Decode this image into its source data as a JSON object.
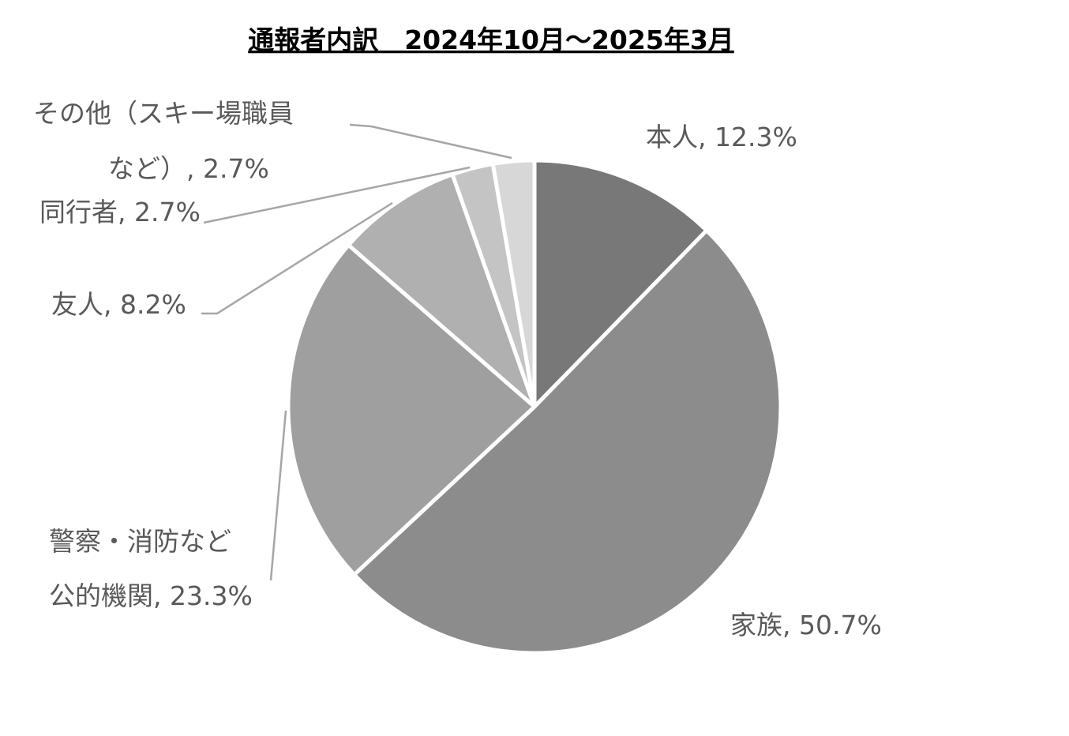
{
  "chart_data": {
    "type": "pie",
    "title": "通報者内訳　2024年10月～2025年3月",
    "categories": [
      [
        "本人"
      ],
      [
        "家族"
      ],
      [
        "警察・消防など",
        "公的機関"
      ],
      [
        "友人"
      ],
      [
        "同行者"
      ],
      [
        "その他（スキー場職員",
        "など）"
      ]
    ],
    "values": [
      12.3,
      50.7,
      23.3,
      8.2,
      2.7,
      2.7
    ],
    "value_labels": [
      "12.3%",
      "50.7%",
      "23.3%",
      "8.2%",
      "2.7%",
      "2.7%"
    ],
    "label_separator": ", ",
    "colors": [
      "#787878",
      "#8c8c8c",
      "#9f9f9f",
      "#b0b0b0",
      "#c4c4c4",
      "#d7d7d7"
    ]
  }
}
